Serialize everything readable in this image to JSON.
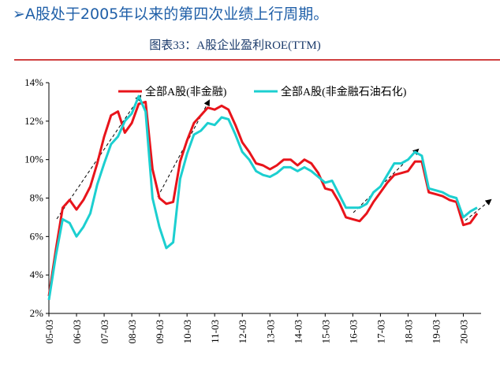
{
  "header": {
    "title": "➢A股处于2005年以来的第四次业绩上行周期。"
  },
  "chart_data": {
    "type": "line",
    "title": "图表33：A股企业盈利ROE(TTM)",
    "legend": "top",
    "categories": [
      "05-03",
      null,
      null,
      null,
      "06-03",
      null,
      null,
      null,
      "07-03",
      null,
      null,
      null,
      "08-03",
      null,
      null,
      null,
      "09-03",
      null,
      null,
      null,
      "10-03",
      null,
      null,
      null,
      "11-03",
      null,
      null,
      null,
      "12-03",
      null,
      null,
      null,
      "13-03",
      null,
      null,
      null,
      "14-03",
      null,
      null,
      null,
      "15-03",
      null,
      null,
      null,
      "16-03",
      null,
      null,
      null,
      "17-03",
      null,
      null,
      null,
      "18-03",
      null,
      null,
      null,
      "19-03",
      null,
      null,
      null,
      "20-03",
      null,
      null
    ],
    "series": [
      {
        "name": "全部A股(非金融)",
        "color": "#e8141b",
        "values": [
          2.9,
          5.3,
          7.5,
          7.9,
          7.4,
          7.9,
          8.6,
          9.8,
          11.2,
          12.3,
          12.5,
          11.4,
          11.9,
          12.9,
          13.0,
          9.5,
          8.0,
          7.7,
          7.8,
          9.9,
          11.0,
          11.9,
          12.3,
          12.7,
          12.6,
          12.8,
          12.6,
          11.8,
          10.9,
          10.4,
          9.8,
          9.7,
          9.5,
          9.7,
          10.0,
          10.0,
          9.7,
          10.0,
          9.8,
          9.3,
          8.5,
          8.4,
          7.8,
          7.0,
          6.9,
          6.8,
          7.2,
          7.8,
          8.3,
          8.8,
          9.2,
          9.3,
          9.4,
          9.9,
          9.9,
          8.3,
          8.2,
          8.1,
          7.9,
          7.8,
          6.6,
          6.7,
          7.2
        ]
      },
      {
        "name": "全部A股(非金融石油石化)",
        "color": "#1ccfd0",
        "values": [
          2.7,
          5.0,
          6.9,
          6.7,
          6.0,
          6.5,
          7.2,
          8.7,
          9.8,
          10.8,
          11.2,
          12.0,
          12.4,
          13.3,
          12.5,
          8.0,
          6.5,
          5.4,
          5.7,
          9.0,
          10.3,
          11.3,
          11.5,
          11.9,
          11.8,
          12.2,
          12.1,
          11.3,
          10.4,
          10.0,
          9.4,
          9.2,
          9.1,
          9.3,
          9.6,
          9.6,
          9.4,
          9.6,
          9.4,
          9.1,
          8.8,
          8.9,
          8.2,
          7.5,
          7.5,
          7.5,
          7.7,
          8.3,
          8.6,
          9.2,
          9.8,
          9.8,
          10.0,
          10.4,
          10.2,
          8.5,
          8.4,
          8.3,
          8.1,
          8.0,
          7.0,
          7.3,
          7.5
        ]
      }
    ],
    "ylim": [
      2,
      14
    ],
    "yticks": [
      {
        "value": 2,
        "label": "2%"
      },
      {
        "value": 4,
        "label": "4%"
      },
      {
        "value": 6,
        "label": "6%"
      },
      {
        "value": 8,
        "label": "8%"
      },
      {
        "value": 10,
        "label": "10%"
      },
      {
        "value": 12,
        "label": "12%"
      },
      {
        "value": 14,
        "label": "14%"
      }
    ],
    "grid": false
  }
}
